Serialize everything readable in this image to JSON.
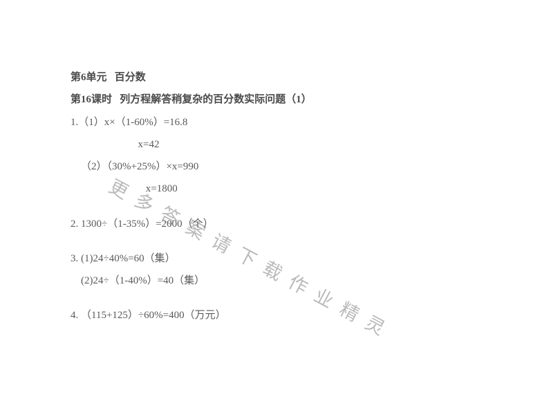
{
  "colors": {
    "background": "#ffffff",
    "text": "#595959",
    "bold_text": "#4a4a4a",
    "watermark": "rgba(130,130,130,0.55)"
  },
  "typography": {
    "body_fontsize": 15,
    "body_lineheight": 2.15,
    "watermark_fontsize": 27,
    "watermark_letterspacing": 15,
    "watermark_rotate_deg": 28
  },
  "heading1": "第6单元   百分数",
  "heading2": "第16课时   列方程解答稍复杂的百分数实际问题（1）",
  "q1": {
    "line1": "1.（1）x×（1-60%）=16.8",
    "line2": "                          x=42",
    "line3": "    （2）（30%+25%）×x=990",
    "line4": "                             x=1800"
  },
  "q2": "2. 1300÷（1-35%）=2000（个）",
  "q3": {
    "line1": "3. (1)24÷40%=60（集）",
    "line2": "    (2)24÷（1-40%）=40（集）"
  },
  "q4": "4. （115+125）÷60%=400（万元）",
  "watermark_text": "更多答案请下载作业精灵"
}
